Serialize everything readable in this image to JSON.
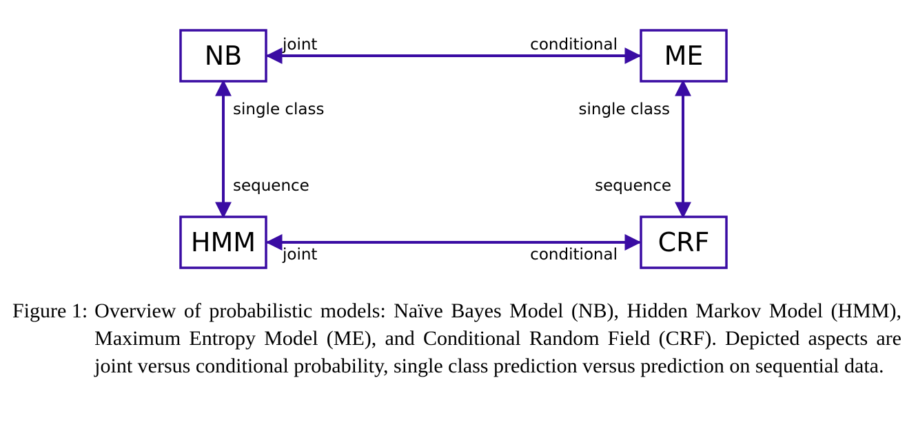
{
  "colors": {
    "accent": "#3a0ca3",
    "text": "#000000",
    "background": "#ffffff"
  },
  "nodes": {
    "nb": "NB",
    "me": "ME",
    "hmm": "HMM",
    "crf": "CRF"
  },
  "edges": {
    "top_left_label": "joint",
    "top_right_label": "conditional",
    "bottom_left_label": "joint",
    "bottom_right_label": "conditional",
    "left_top_label": "single class",
    "left_bottom_label": "sequence",
    "right_top_label": "single class",
    "right_bottom_label": "sequence"
  },
  "caption": {
    "number": "Figure 1:",
    "text": "Overview of probabilistic models: Naïve Bayes Model (NB), Hidden Markov Model (HMM), Maximum Entropy Model (ME), and Conditional Random Field (CRF). Depicted aspects are joint versus conditional probability, single class prediction versus prediction on sequential data."
  }
}
